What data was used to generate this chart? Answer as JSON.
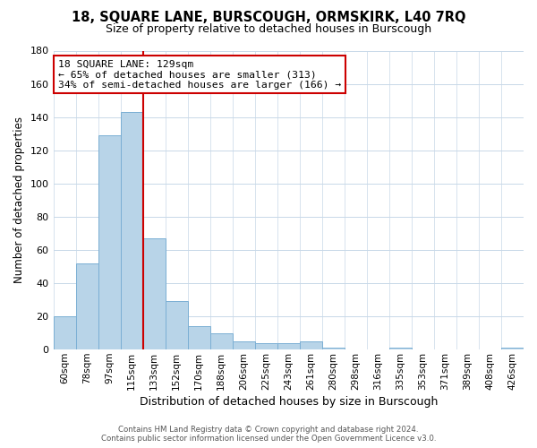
{
  "title": "18, SQUARE LANE, BURSCOUGH, ORMSKIRK, L40 7RQ",
  "subtitle": "Size of property relative to detached houses in Burscough",
  "xlabel": "Distribution of detached houses by size in Burscough",
  "ylabel": "Number of detached properties",
  "bar_color": "#b8d4e8",
  "bar_edge_color": "#7bafd4",
  "vline_color": "#cc0000",
  "vline_x_idx": 3.5,
  "categories": [
    "60sqm",
    "78sqm",
    "97sqm",
    "115sqm",
    "133sqm",
    "152sqm",
    "170sqm",
    "188sqm",
    "206sqm",
    "225sqm",
    "243sqm",
    "261sqm",
    "280sqm",
    "298sqm",
    "316sqm",
    "335sqm",
    "353sqm",
    "371sqm",
    "389sqm",
    "408sqm",
    "426sqm"
  ],
  "values": [
    20,
    52,
    129,
    143,
    67,
    29,
    14,
    10,
    5,
    4,
    4,
    5,
    1,
    0,
    0,
    1,
    0,
    0,
    0,
    0,
    1
  ],
  "ylim": [
    0,
    180
  ],
  "yticks": [
    0,
    20,
    40,
    60,
    80,
    100,
    120,
    140,
    160,
    180
  ],
  "annotation_title": "18 SQUARE LANE: 129sqm",
  "annotation_line1": "← 65% of detached houses are smaller (313)",
  "annotation_line2": "34% of semi-detached houses are larger (166) →",
  "footer1": "Contains HM Land Registry data © Crown copyright and database right 2024.",
  "footer2": "Contains public sector information licensed under the Open Government Licence v3.0.",
  "background_color": "#ffffff",
  "grid_color": "#c8d8e8"
}
